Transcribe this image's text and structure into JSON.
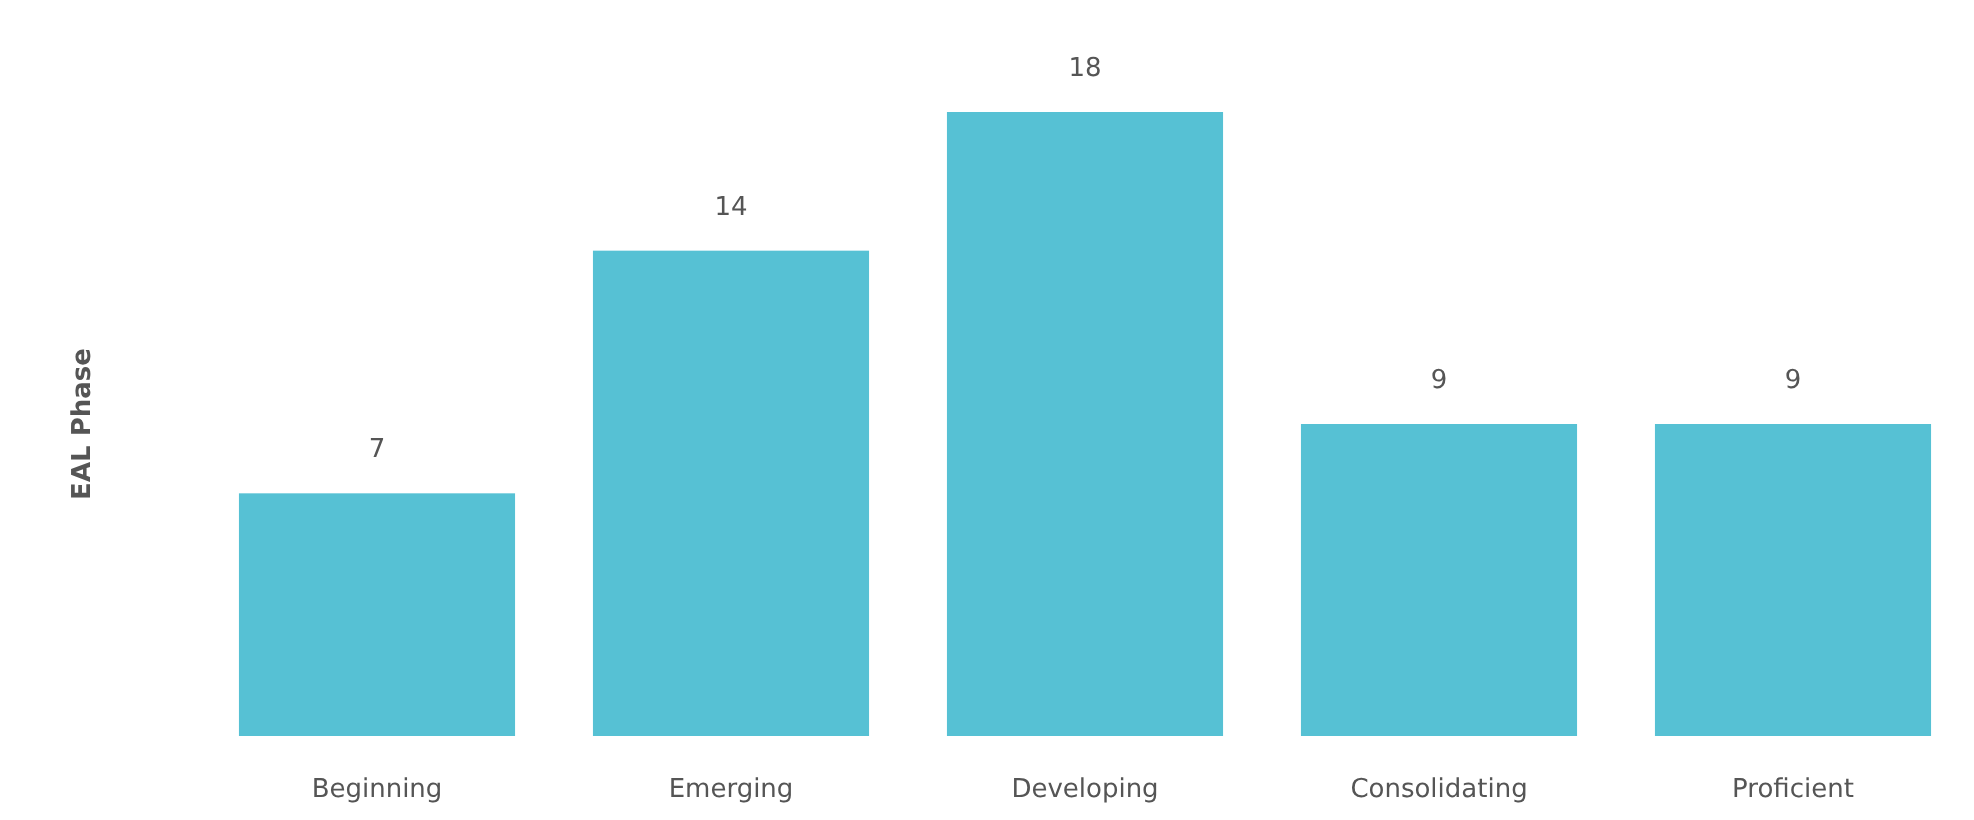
{
  "chart_data": {
    "type": "bar",
    "ylabel": "EAL Phase",
    "categories": [
      "Beginning",
      "Emerging",
      "Developing",
      "Consolidating",
      "Proficient"
    ],
    "values": [
      7,
      14,
      18,
      9,
      9
    ],
    "color": "#56c1d4",
    "data_labels": true
  }
}
